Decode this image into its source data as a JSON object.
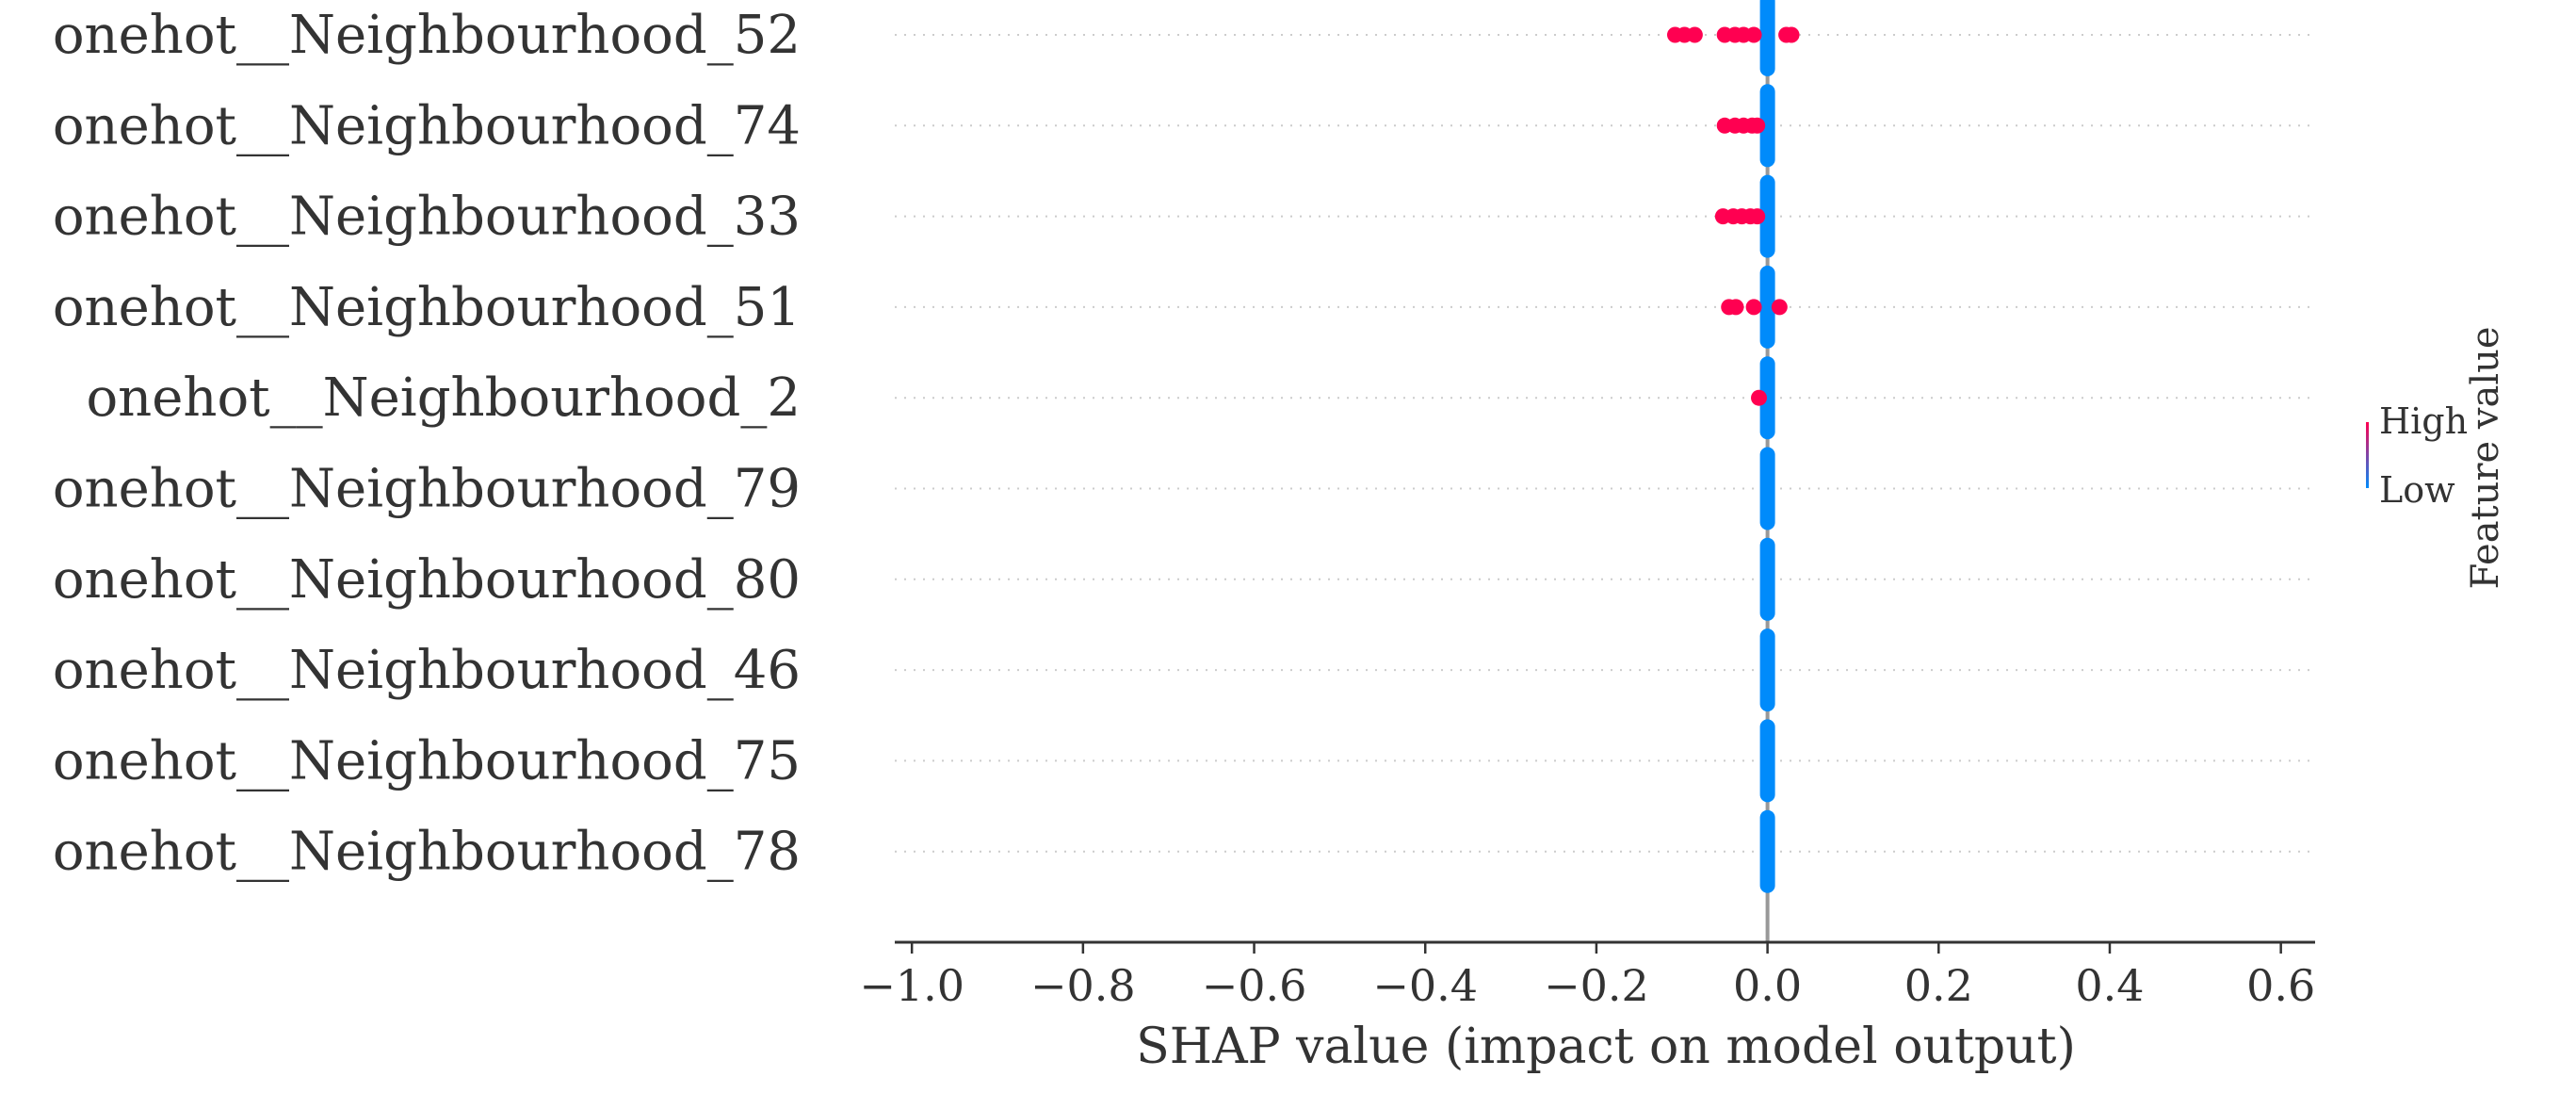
{
  "chart_data": {
    "type": "scatter",
    "title": "",
    "xlabel": "SHAP value (impact on model output)",
    "ylabel": "",
    "xlim": [
      -1.02,
      0.64
    ],
    "xticks": [
      -1.0,
      -0.8,
      -0.6,
      -0.4,
      -0.2,
      0.0,
      0.2,
      0.4,
      0.6
    ],
    "xtick_labels": [
      "−1.0",
      "−0.8",
      "−0.6",
      "−0.4",
      "−0.2",
      "0.0",
      "0.2",
      "0.4",
      "0.6"
    ],
    "grid": "horizontal dotted",
    "features": [
      {
        "name": "onehot__Neighbourhood_52",
        "high_values": [
          -0.108,
          -0.097,
          -0.085,
          -0.05,
          -0.038,
          -0.028,
          -0.016,
          0.022,
          0.028
        ],
        "low_value": 0.0
      },
      {
        "name": "onehot__Neighbourhood_74",
        "high_values": [
          -0.05,
          -0.038,
          -0.028,
          -0.018,
          -0.012
        ],
        "low_value": 0.0
      },
      {
        "name": "onehot__Neighbourhood_33",
        "high_values": [
          -0.052,
          -0.04,
          -0.03,
          -0.02,
          -0.012
        ],
        "low_value": 0.0
      },
      {
        "name": "onehot__Neighbourhood_51",
        "high_values": [
          -0.045,
          -0.037,
          -0.016,
          0.014
        ],
        "low_value": 0.0
      },
      {
        "name": "onehot__Neighbourhood_2",
        "high_values": [
          -0.01
        ],
        "low_value": 0.0
      },
      {
        "name": "onehot__Neighbourhood_79",
        "high_values": [],
        "low_value": 0.0
      },
      {
        "name": "onehot__Neighbourhood_80",
        "high_values": [],
        "low_value": 0.0
      },
      {
        "name": "onehot__Neighbourhood_46",
        "high_values": [],
        "low_value": 0.0
      },
      {
        "name": "onehot__Neighbourhood_75",
        "high_values": [],
        "low_value": 0.0
      },
      {
        "name": "onehot__Neighbourhood_78",
        "high_values": [],
        "low_value": 0.0
      }
    ],
    "colorbar": {
      "label": "Feature value",
      "high_label": "High",
      "low_label": "Low",
      "high_color": "#ff0051",
      "low_color": "#008bfb"
    },
    "legend_placement": "right"
  }
}
